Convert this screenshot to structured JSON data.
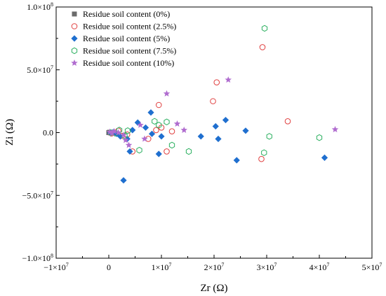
{
  "chart_data": {
    "type": "scatter",
    "title": "",
    "xlabel": "Zr (Ω)",
    "ylabel": "Zi (Ω)",
    "xlim": [
      -10000000,
      50000000
    ],
    "ylim": [
      -100000000,
      100000000
    ],
    "grid": false,
    "legend_position": "top-left",
    "x_ticks": [
      {
        "value": -10000000,
        "mantissa": "−1×10",
        "exp": "7"
      },
      {
        "value": 0,
        "mantissa": "0",
        "exp": ""
      },
      {
        "value": 10000000,
        "mantissa": "1×10",
        "exp": "7"
      },
      {
        "value": 20000000,
        "mantissa": "2×10",
        "exp": "7"
      },
      {
        "value": 30000000,
        "mantissa": "3×10",
        "exp": "7"
      },
      {
        "value": 40000000,
        "mantissa": "4×10",
        "exp": "7"
      },
      {
        "value": 50000000,
        "mantissa": "5×10",
        "exp": "7"
      }
    ],
    "y_ticks": [
      {
        "value": 100000000,
        "mantissa": "1.0×10",
        "exp": "8"
      },
      {
        "value": 50000000,
        "mantissa": "5.0×10",
        "exp": "7"
      },
      {
        "value": 0,
        "mantissa": "0.0",
        "exp": ""
      },
      {
        "value": -50000000,
        "mantissa": "−5.0×10",
        "exp": "7"
      },
      {
        "value": -100000000,
        "mantissa": "−1.0×10",
        "exp": "8"
      }
    ],
    "series": [
      {
        "name": "Residue soil content (0%)",
        "marker": "square",
        "color": "#6b6b6b",
        "points": [
          [
            0,
            0
          ],
          [
            150000,
            300000
          ],
          [
            300000,
            -200000
          ],
          [
            500000,
            100000
          ],
          [
            700000,
            -300000
          ],
          [
            900000,
            200000
          ]
        ]
      },
      {
        "name": "Residue soil content (2.5%)",
        "marker": "circle-open",
        "color": "#e04040",
        "points": [
          [
            500000,
            -700000
          ],
          [
            1000000,
            200000
          ],
          [
            1800000,
            1500000
          ],
          [
            2500000,
            -2500000
          ],
          [
            3500000,
            -1500000
          ],
          [
            4500000,
            -15000000
          ],
          [
            7500000,
            -5000000
          ],
          [
            9000000,
            2000000
          ],
          [
            9500000,
            22000000
          ],
          [
            10000000,
            4000000
          ],
          [
            11000000,
            -15000000
          ],
          [
            12000000,
            1000000
          ],
          [
            19800000,
            25000000
          ],
          [
            20500000,
            40000000
          ],
          [
            29000000,
            -21000000
          ],
          [
            29200000,
            68000000
          ],
          [
            34000000,
            9000000
          ]
        ]
      },
      {
        "name": "Residue soil content (5%)",
        "marker": "diamond",
        "color": "#1f6fcf",
        "points": [
          [
            300000,
            -300000
          ],
          [
            800000,
            200000
          ],
          [
            1500000,
            -1000000
          ],
          [
            2200000,
            -3000000
          ],
          [
            2800000,
            -38000000
          ],
          [
            3500000,
            -5000000
          ],
          [
            4000000,
            -15000000
          ],
          [
            4500000,
            2000000
          ],
          [
            5500000,
            8000000
          ],
          [
            7000000,
            4000000
          ],
          [
            8000000,
            16000000
          ],
          [
            8200000,
            -1000000
          ],
          [
            9500000,
            -17000000
          ],
          [
            10000000,
            -3000000
          ],
          [
            17500000,
            -3000000
          ],
          [
            20300000,
            5000000
          ],
          [
            20800000,
            -5000000
          ],
          [
            22200000,
            10000000
          ],
          [
            24300000,
            -22000000
          ],
          [
            26000000,
            1500000
          ],
          [
            41000000,
            -20000000
          ]
        ]
      },
      {
        "name": "Residue soil content (7.5%)",
        "marker": "hexagon-open",
        "color": "#2cb060",
        "points": [
          [
            400000,
            0
          ],
          [
            1200000,
            -500000
          ],
          [
            2000000,
            2000000
          ],
          [
            3000000,
            -2500000
          ],
          [
            3600000,
            1500000
          ],
          [
            5800000,
            -14000000
          ],
          [
            8700000,
            9000000
          ],
          [
            9500000,
            6000000
          ],
          [
            11000000,
            8500000
          ],
          [
            12000000,
            -10000000
          ],
          [
            15200000,
            -15000000
          ],
          [
            29500000,
            -16000000
          ],
          [
            29600000,
            83000000
          ],
          [
            30500000,
            -3000000
          ],
          [
            40000000,
            -4000000
          ]
        ]
      },
      {
        "name": "Residue soil content (10%)",
        "marker": "star",
        "color": "#b06ccf",
        "points": [
          [
            200000,
            500000
          ],
          [
            600000,
            -500000
          ],
          [
            1000000,
            1000000
          ],
          [
            1800000,
            0
          ],
          [
            2800000,
            -2000000
          ],
          [
            3200000,
            -6000000
          ],
          [
            3800000,
            -10000000
          ],
          [
            6000000,
            6000000
          ],
          [
            6800000,
            -5000000
          ],
          [
            11000000,
            31000000
          ],
          [
            13000000,
            7000000
          ],
          [
            14300000,
            2000000
          ],
          [
            22700000,
            42000000
          ],
          [
            43000000,
            2500000
          ]
        ]
      }
    ]
  }
}
